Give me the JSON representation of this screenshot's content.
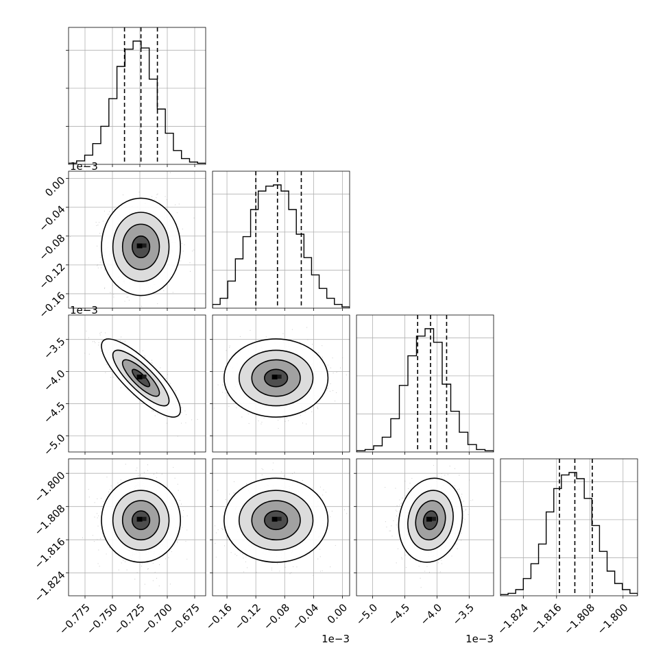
{
  "chart_data": {
    "type": "corner",
    "parameters": [
      {
        "ticks": [
          -0.775,
          -0.75,
          -0.725,
          -0.7,
          -0.675
        ],
        "tick_labels": [
          "−0.775",
          "−0.750",
          "−0.725",
          "−0.700",
          "−0.675"
        ],
        "range": [
          -0.79,
          -0.665
        ],
        "multiplier": "",
        "quantiles": [
          -0.739,
          -0.724,
          -0.709
        ]
      },
      {
        "ticks": [
          -0.16,
          -0.12,
          -0.08,
          -0.04,
          0.0
        ],
        "tick_labels": [
          "−0.16",
          "−0.12",
          "−0.08",
          "−0.04",
          "0.00"
        ],
        "range": [
          -0.18,
          0.01
        ],
        "multiplier": "1e−3",
        "quantiles": [
          -0.12,
          -0.09,
          -0.057
        ]
      },
      {
        "ticks": [
          -5.0,
          -4.5,
          -4.0,
          -3.5
        ],
        "tick_labels": [
          "−5.0",
          "−4.5",
          "−4.0",
          "−3.5"
        ],
        "range": [
          -5.25,
          -3.12
        ],
        "multiplier": "1e−3",
        "quantiles": [
          -4.3,
          -4.1,
          -3.85
        ]
      },
      {
        "ticks": [
          -1.824,
          -1.816,
          -1.808,
          -1.8
        ],
        "tick_labels": [
          "−1.824",
          "−1.816",
          "−1.808",
          "−1.800"
        ],
        "range": [
          -1.8295,
          -1.7965
        ],
        "multiplier": "",
        "quantiles": [
          -1.8153,
          -1.8116,
          -1.8074
        ]
      }
    ],
    "histograms": [
      [
        1,
        3,
        8,
        18,
        33,
        57,
        85,
        100,
        107,
        101,
        74,
        48,
        27,
        12,
        5,
        2,
        1
      ],
      [
        3,
        8,
        22,
        40,
        58,
        80,
        95,
        99,
        100,
        95,
        80,
        60,
        41,
        27,
        16,
        8,
        3,
        1
      ],
      [
        1,
        2,
        5,
        12,
        27,
        54,
        78,
        94,
        100,
        89,
        55,
        33,
        16,
        6,
        2,
        1
      ],
      [
        1,
        2,
        5,
        14,
        26,
        42,
        68,
        87,
        98,
        100,
        95,
        79,
        57,
        36,
        20,
        10,
        5,
        2
      ]
    ],
    "pairs": [
      {
        "row": 1,
        "col": 0,
        "mean": [
          -0.724,
          -0.095
        ],
        "sd": [
          0.016,
          0.03
        ],
        "corr": 0.0
      },
      {
        "row": 2,
        "col": 0,
        "mean": [
          -0.724,
          -4.1
        ],
        "sd": [
          0.016,
          0.27
        ],
        "corr": -0.82
      },
      {
        "row": 2,
        "col": 1,
        "mean": [
          -0.092,
          -4.1
        ],
        "sd": [
          0.032,
          0.27
        ],
        "corr": 0.0
      },
      {
        "row": 3,
        "col": 0,
        "mean": [
          -0.724,
          -1.8113
        ],
        "sd": [
          0.016,
          0.0045
        ],
        "corr": 0.0
      },
      {
        "row": 3,
        "col": 1,
        "mean": [
          -0.092,
          -1.8113
        ],
        "sd": [
          0.032,
          0.0045
        ],
        "corr": 0.0
      },
      {
        "row": 3,
        "col": 2,
        "mean": [
          -4.1,
          -1.8113
        ],
        "sd": [
          0.22,
          0.0045
        ],
        "corr": 0.12
      }
    ],
    "grid": true,
    "title": "",
    "xlabel": "",
    "ylabel": ""
  }
}
